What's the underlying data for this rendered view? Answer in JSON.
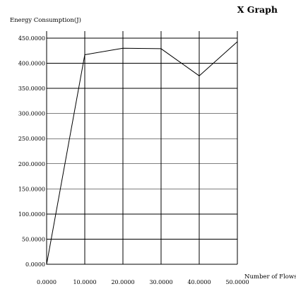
{
  "chart_data": {
    "type": "line",
    "title": "X Graph",
    "xlabel": "Number of Flows",
    "ylabel": "Energy Consumption(J)",
    "xlim": [
      0,
      50
    ],
    "ylim": [
      0,
      450
    ],
    "x_ticks": [
      0,
      10,
      20,
      30,
      40,
      50
    ],
    "y_ticks": [
      0,
      50,
      100,
      150,
      200,
      250,
      300,
      350,
      400,
      450
    ],
    "x_tick_labels": [
      "0.0000",
      "10.0000",
      "20.0000",
      "30.0000",
      "40.0000",
      "50.0000"
    ],
    "y_tick_labels": [
      "0.0000",
      "50.0000",
      "100.0000",
      "150.0000",
      "200.0000",
      "250.0000",
      "300.0000",
      "350.0000",
      "400.0000",
      "450.0000"
    ],
    "grid": true,
    "legend": "none",
    "series": [
      {
        "x": [
          0,
          10,
          20,
          30,
          40,
          50
        ],
        "values": [
          0,
          417,
          430,
          429,
          375,
          443
        ],
        "color": "#000000"
      }
    ]
  }
}
